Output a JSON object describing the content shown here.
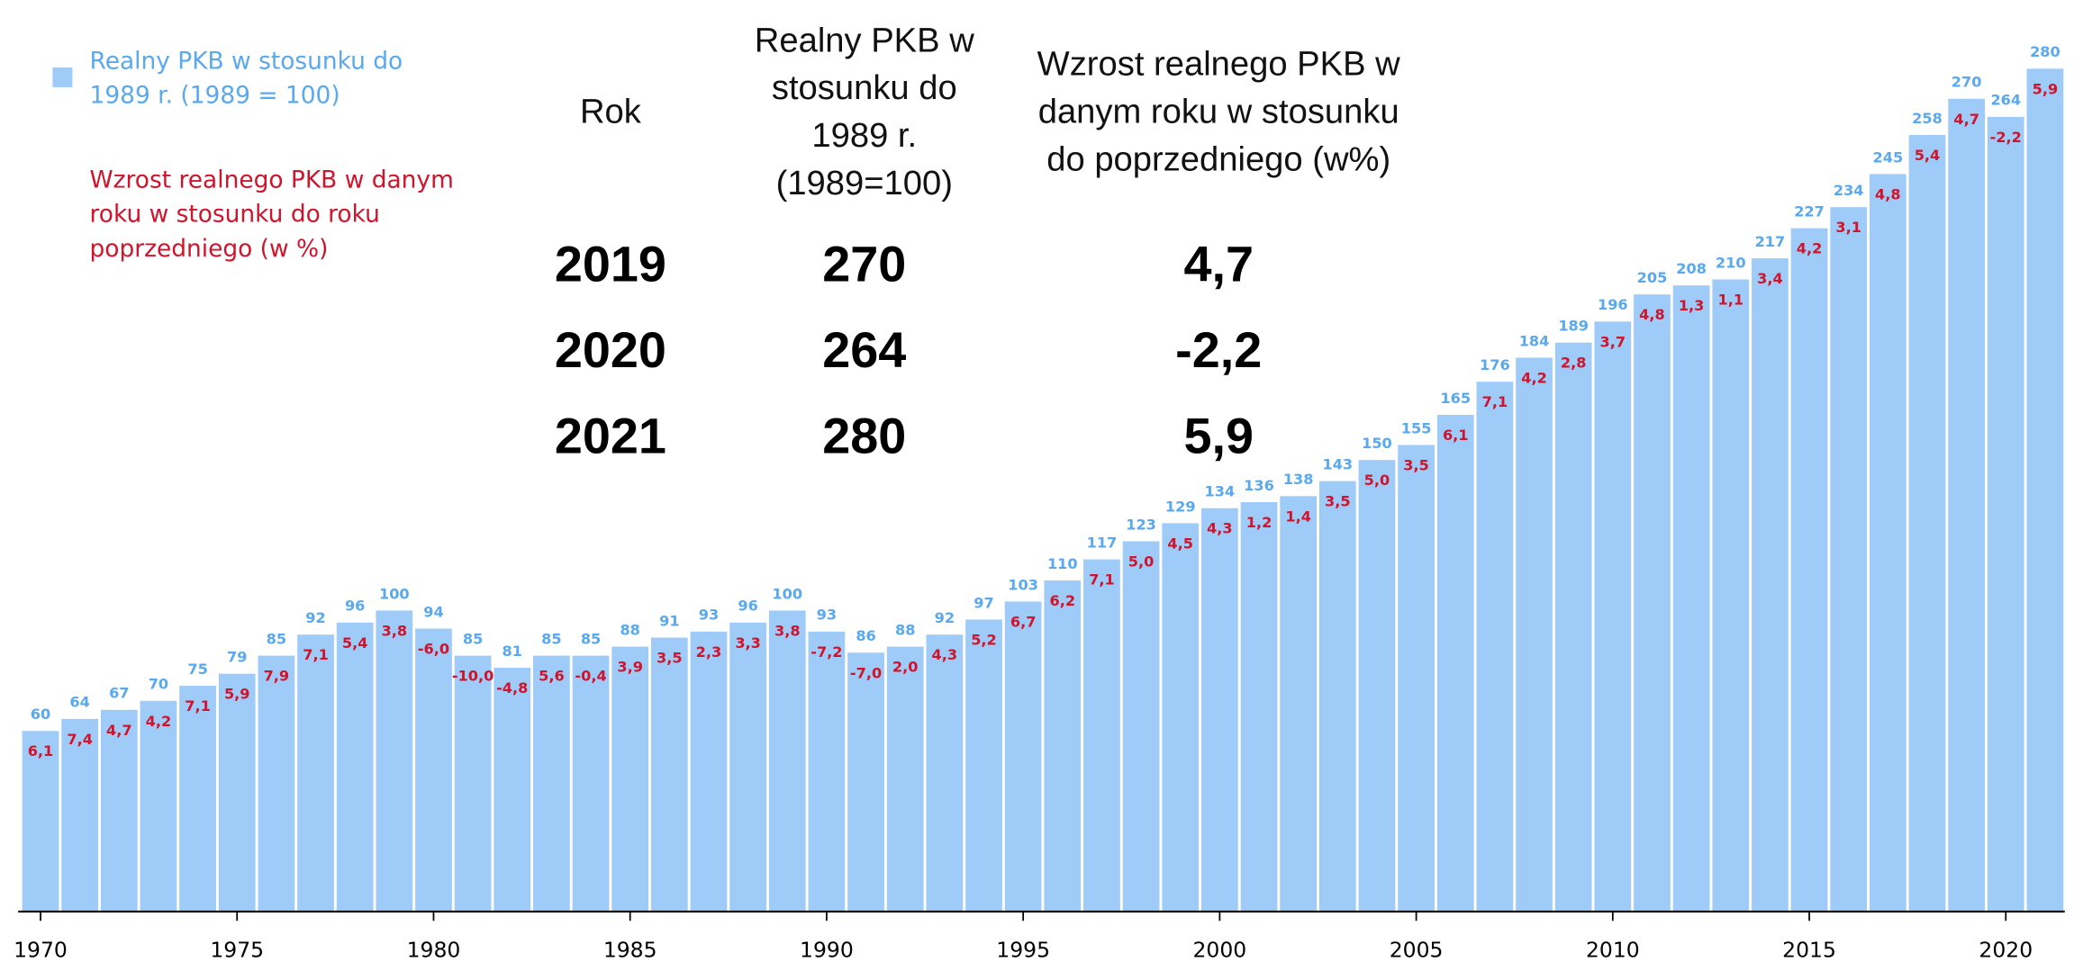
{
  "chart_data": {
    "type": "bar",
    "categories": [
      1970,
      1971,
      1972,
      1973,
      1974,
      1975,
      1976,
      1977,
      1978,
      1979,
      1980,
      1981,
      1982,
      1983,
      1984,
      1985,
      1986,
      1987,
      1988,
      1989,
      1990,
      1991,
      1992,
      1993,
      1994,
      1995,
      1996,
      1997,
      1998,
      1999,
      2000,
      2001,
      2002,
      2003,
      2004,
      2005,
      2006,
      2007,
      2008,
      2009,
      2010,
      2011,
      2012,
      2013,
      2014,
      2015,
      2016,
      2017,
      2018,
      2019,
      2020,
      2021
    ],
    "series": [
      {
        "name": "Realny PKB w stosunku do 1989 r. (1989 = 100)",
        "color": "#9ecbf7",
        "label_color": "#5aa9ef",
        "values": [
          60,
          64,
          67,
          70,
          75,
          79,
          85,
          92,
          96,
          100,
          94,
          85,
          81,
          85,
          85,
          88,
          91,
          93,
          96,
          100,
          93,
          86,
          88,
          92,
          97,
          103,
          110,
          117,
          123,
          129,
          134,
          136,
          138,
          143,
          150,
          155,
          165,
          176,
          184,
          189,
          196,
          205,
          208,
          210,
          217,
          227,
          234,
          245,
          258,
          270,
          264,
          280
        ]
      },
      {
        "name": "Wzrost realnego PKB w danym roku w stosunku do roku poprzedniego (w %)",
        "color": "#d0142c",
        "values": [
          6.1,
          7.4,
          4.7,
          4.2,
          7.1,
          5.9,
          7.9,
          7.1,
          5.4,
          3.8,
          -6.0,
          -10.0,
          -4.8,
          5.6,
          -0.4,
          3.9,
          3.5,
          2.3,
          3.3,
          3.8,
          -7.2,
          -7.0,
          2.0,
          4.3,
          5.2,
          6.7,
          6.2,
          7.1,
          5.0,
          4.5,
          4.3,
          1.2,
          1.4,
          3.5,
          5.0,
          3.5,
          6.1,
          7.1,
          4.2,
          2.8,
          3.7,
          4.8,
          1.3,
          1.1,
          3.4,
          4.2,
          3.1,
          4.8,
          5.4,
          4.7,
          -2.2,
          5.9
        ],
        "value_labels": [
          "6,1",
          "7,4",
          "4,7",
          "4,2",
          "7,1",
          "5,9",
          "7,9",
          "7,1",
          "5,4",
          "3,8",
          "-6,0",
          "-10,0",
          "-4,8",
          "5,6",
          "-0,4",
          "3,9",
          "3,5",
          "2,3",
          "3,3",
          "3,8",
          "-7,2",
          "-7,0",
          "2,0",
          "4,3",
          "5,2",
          "6,7",
          "6,2",
          "7,1",
          "5,0",
          "4,5",
          "4,3",
          "1,2",
          "1,4",
          "3,5",
          "5,0",
          "3,5",
          "6,1",
          "7,1",
          "4,2",
          "2,8",
          "3,7",
          "4,8",
          "1,3",
          "1,1",
          "3,4",
          "4,2",
          "3,1",
          "4,8",
          "5,4",
          "4,7",
          "-2,2",
          "5,9"
        ]
      }
    ],
    "xticks": [
      1970,
      1975,
      1980,
      1985,
      1990,
      1995,
      2000,
      2005,
      2010,
      2015,
      2020
    ],
    "ylim": [
      0,
      280
    ]
  },
  "table": {
    "columns": [
      "Rok",
      "Realny PKB w stosunku do 1989 r. (1989=100)",
      "Wzrost realnego PKB w danym roku w stosunku do poprzedniego (w%)"
    ],
    "rows": [
      [
        "2019",
        "270",
        "4,7"
      ],
      [
        "2020",
        "264",
        "-2,2"
      ],
      [
        "2021",
        "280",
        "5,9"
      ]
    ]
  }
}
